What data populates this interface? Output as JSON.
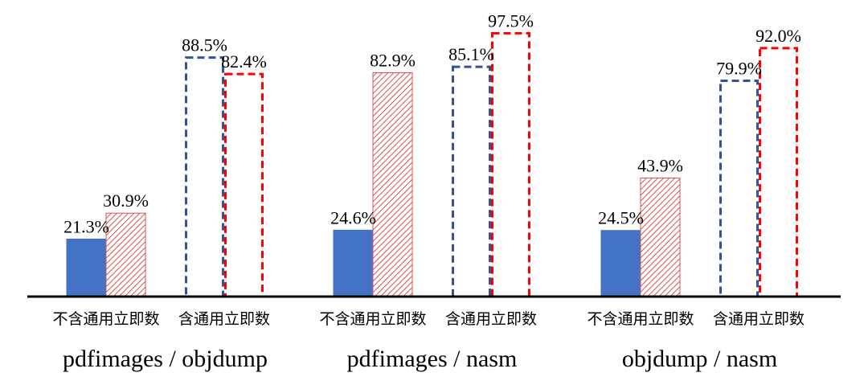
{
  "chart_data": {
    "type": "bar",
    "groups": [
      {
        "label": "pdfimages / objdump",
        "subgroups": [
          {
            "label": "不含通用立即数",
            "values": [
              21.3,
              30.9
            ],
            "value_labels": [
              "21.3%",
              "30.9%"
            ]
          },
          {
            "label": "含通用立即数",
            "values": [
              88.5,
              82.4
            ],
            "value_labels": [
              "88.5%",
              "82.4%"
            ]
          }
        ]
      },
      {
        "label": "pdfimages / nasm",
        "subgroups": [
          {
            "label": "不含通用立即数",
            "values": [
              24.6,
              82.9
            ],
            "value_labels": [
              "24.6%",
              "82.9%"
            ]
          },
          {
            "label": "含通用立即数",
            "values": [
              85.1,
              97.5
            ],
            "value_labels": [
              "85.1%",
              "97.5%"
            ]
          }
        ]
      },
      {
        "label": "objdump / nasm",
        "subgroups": [
          {
            "label": "不含通用立即数",
            "values": [
              24.5,
              43.9
            ],
            "value_labels": [
              "24.5%",
              "43.9%"
            ]
          },
          {
            "label": "含通用立即数",
            "values": [
              79.9,
              92.0
            ],
            "value_labels": [
              "79.9%",
              "92.0%"
            ]
          }
        ]
      }
    ],
    "ylim": [
      0,
      100
    ],
    "grid": false,
    "legend": "none",
    "colors": {
      "blue": "#4472c4",
      "blue_dashed": "#2f5597",
      "red_hatch": "#d9534f",
      "red_dashed": "#ff0000"
    }
  }
}
